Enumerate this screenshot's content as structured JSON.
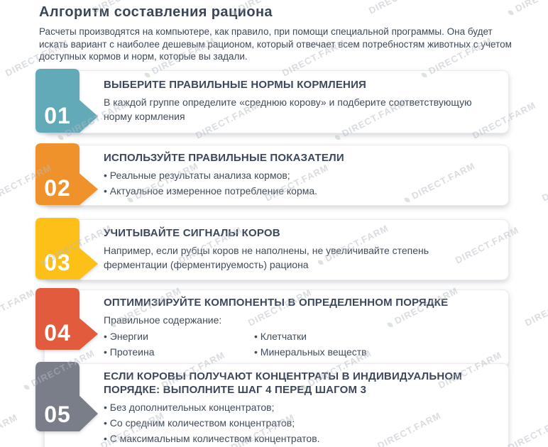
{
  "header": {
    "title": "Алгоритм составления рациона",
    "intro": "Расчеты производятся на компьютере, как правило, при помощи специальной программы. Она будет искать вариант с наиболее дешевым рационом, который отвечает всем потребностям животных с учетом доступных кормов и норм, которые вы задали."
  },
  "watermark": {
    "text": "DIRECT.FARM",
    "icon": "leaf-icon"
  },
  "colors": {
    "title_text": "#3b4757",
    "body_text": "#414c59",
    "card_bg": "#ffffff",
    "watermark": "#b5bac2"
  },
  "steps": [
    {
      "number": "01",
      "accent_color": "#63aab8",
      "title": "ВЫБЕРИТЕ ПРАВИЛЬНЫЕ НОРМЫ КОРМЛЕНИЯ",
      "paragraphs": [
        "В каждой группе определите «среднюю корову» и подберите соответствующую норму кормления"
      ],
      "bullets": [],
      "columns": []
    },
    {
      "number": "02",
      "accent_color": "#f0922b",
      "title": "ИСПОЛЬЗУЙТЕ ПРАВИЛЬНЫЕ ПОКАЗАТЕЛИ",
      "paragraphs": [],
      "bullets": [
        "Реальные результаты анализа кормов;",
        "Актуальное измеренное потребление корма."
      ],
      "columns": []
    },
    {
      "number": "03",
      "accent_color": "#fcc017",
      "title": "УЧИТЫВАЙТЕ СИГНАЛЫ КОРОВ",
      "paragraphs": [
        "Например, если рубцы коров не наполнены, не увеличивайте степень ферментации (ферментируемость) рациона"
      ],
      "bullets": [],
      "columns": []
    },
    {
      "number": "04",
      "accent_color": "#e25b3d",
      "title": "ОПТИМИЗИРУЙТЕ КОМПОНЕНТЫ В ОПРЕДЕЛЕННОМ ПОРЯДКЕ",
      "paragraphs": [
        "Правильное содержание:"
      ],
      "bullets": [],
      "columns": [
        [
          "Энергии",
          "Протеина"
        ],
        [
          "Клетчатки",
          "Минеральных веществ"
        ]
      ]
    },
    {
      "number": "05",
      "accent_color": "#7a7e88",
      "title": "ЕСЛИ КОРОВЫ ПОЛУЧАЮТ КОНЦЕНТРАТЫ В ИНДИВИДУАЛЬНОМ ПОРЯДКЕ: ВЫПОЛНИТЕ ШАГ 4 ПЕРЕД ШАГОМ 3",
      "paragraphs": [],
      "bullets": [
        "Без дополнительных концентратов;",
        "Со средним количеством концентратов;",
        "С максимальным количеством концентратов."
      ],
      "columns": []
    }
  ]
}
